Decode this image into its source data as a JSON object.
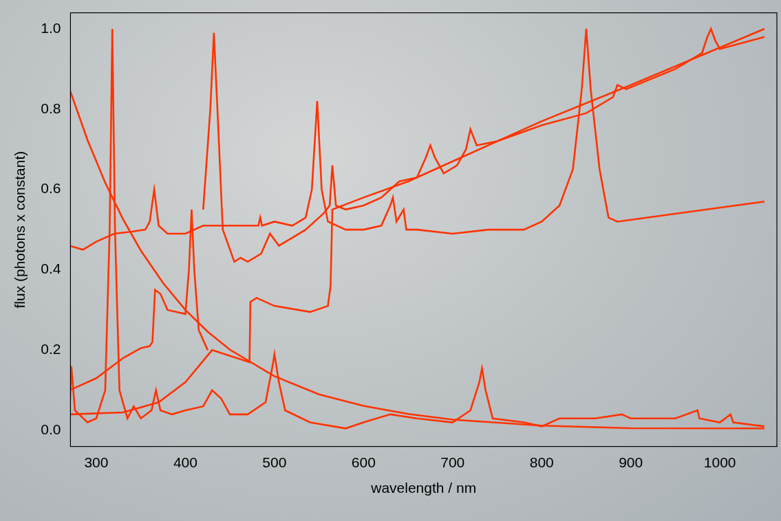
{
  "chart_data": {
    "type": "line",
    "x_label": "wavelength / nm",
    "y_label": "flux (photons x constant)",
    "xlim": [
      271,
      1064
    ],
    "ylim": [
      -0.04,
      1.04
    ],
    "xticks": [
      300,
      400,
      500,
      600,
      700,
      800,
      900,
      1000
    ],
    "yticks": [
      {
        "value": 0,
        "label": "0.0"
      },
      {
        "value": 0.2,
        "label": "0.2"
      },
      {
        "value": 0.4,
        "label": "0.4"
      },
      {
        "value": 0.6,
        "label": "0.6"
      },
      {
        "value": 0.8,
        "label": "0.8"
      },
      {
        "value": 1,
        "label": "1.0"
      }
    ],
    "grid": false,
    "series": [
      {
        "color": "#ff3300",
        "x": [
          270,
          290,
          310,
          330,
          350,
          375,
          400,
          425,
          450,
          500,
          550,
          600,
          650,
          700,
          800,
          900,
          1050
        ],
        "values": [
          0.85,
          0.724,
          0.617,
          0.526,
          0.448,
          0.367,
          0.3,
          0.246,
          0.201,
          0.135,
          0.09,
          0.061,
          0.041,
          0.027,
          0.012,
          0.0055,
          0.005
        ]
      },
      {
        "color": "#ff3300",
        "x": [
          270,
          285,
          300,
          320,
          340,
          355,
          360,
          365,
          370,
          380,
          400,
          420,
          440,
          460,
          482,
          484,
          486,
          500,
          520,
          535,
          542,
          548,
          553,
          560,
          580,
          600,
          620,
          630,
          633,
          637,
          645,
          648,
          660,
          700,
          740,
          780,
          800,
          820,
          835,
          845,
          850,
          855,
          865,
          875,
          885,
          1050
        ],
        "values": [
          0.46,
          0.45,
          0.47,
          0.49,
          0.495,
          0.5,
          0.52,
          0.6,
          0.51,
          0.49,
          0.49,
          0.51,
          0.51,
          0.51,
          0.51,
          0.53,
          0.51,
          0.52,
          0.51,
          0.53,
          0.6,
          0.82,
          0.6,
          0.52,
          0.5,
          0.5,
          0.51,
          0.56,
          0.58,
          0.52,
          0.55,
          0.5,
          0.5,
          0.49,
          0.5,
          0.5,
          0.52,
          0.56,
          0.65,
          0.85,
          1.0,
          0.85,
          0.65,
          0.53,
          0.52,
          0.57
        ]
      },
      {
        "color": "#ff3300",
        "x": [
          420,
          428,
          432,
          436,
          442,
          455,
          462,
          470,
          485,
          495,
          505,
          520,
          535,
          555,
          562,
          565,
          569,
          580,
          600,
          620,
          640,
          660,
          670,
          675,
          680,
          690,
          705,
          715,
          720,
          727,
          750,
          800,
          850,
          880,
          885,
          895,
          950,
          980,
          986,
          990,
          995,
          1000,
          1050
        ],
        "values": [
          0.55,
          0.8,
          0.99,
          0.8,
          0.5,
          0.42,
          0.43,
          0.42,
          0.44,
          0.49,
          0.46,
          0.48,
          0.5,
          0.54,
          0.56,
          0.66,
          0.56,
          0.55,
          0.56,
          0.58,
          0.62,
          0.63,
          0.68,
          0.71,
          0.68,
          0.64,
          0.66,
          0.7,
          0.75,
          0.71,
          0.72,
          0.76,
          0.79,
          0.83,
          0.86,
          0.85,
          0.9,
          0.94,
          0.98,
          1.0,
          0.97,
          0.95,
          0.98
        ]
      },
      {
        "color": "#ff3300",
        "x": [
          270,
          330,
          370,
          400,
          430,
          472,
          473,
          480,
          500,
          540,
          560,
          563,
          565,
          600,
          650,
          700,
          800,
          900,
          1050
        ],
        "values": [
          0.04,
          0.045,
          0.07,
          0.12,
          0.2,
          0.17,
          0.32,
          0.33,
          0.31,
          0.295,
          0.31,
          0.36,
          0.55,
          0.58,
          0.62,
          0.67,
          0.77,
          0.86,
          1.0
        ]
      },
      {
        "color": "#ff3300",
        "x": [
          270,
          300,
          330,
          350,
          360,
          363,
          366,
          372,
          380,
          400,
          404,
          407,
          410,
          415,
          425
        ],
        "values": [
          0.1,
          0.13,
          0.18,
          0.205,
          0.21,
          0.22,
          0.35,
          0.34,
          0.3,
          0.29,
          0.4,
          0.55,
          0.4,
          0.25,
          0.2
        ]
      },
      {
        "color": "#ff3300",
        "x": [
          270,
          272,
          276,
          290,
          300,
          310,
          315,
          318,
          321,
          326,
          335,
          342,
          350,
          362,
          367,
          372,
          385,
          400,
          420,
          430,
          440,
          450,
          470,
          490,
          497,
          500,
          505,
          512,
          540,
          580,
          600,
          630,
          660,
          700,
          720,
          730,
          733,
          737,
          745,
          780,
          800,
          820,
          860,
          890,
          900,
          950,
          975,
          977,
          1000,
          1012,
          1015,
          1050
        ],
        "values": [
          0.04,
          0.16,
          0.05,
          0.02,
          0.03,
          0.1,
          0.5,
          1.0,
          0.5,
          0.1,
          0.03,
          0.06,
          0.03,
          0.05,
          0.1,
          0.05,
          0.04,
          0.05,
          0.06,
          0.1,
          0.08,
          0.04,
          0.04,
          0.07,
          0.15,
          0.19,
          0.12,
          0.05,
          0.02,
          0.005,
          0.02,
          0.04,
          0.03,
          0.02,
          0.05,
          0.12,
          0.155,
          0.1,
          0.03,
          0.02,
          0.01,
          0.03,
          0.03,
          0.04,
          0.03,
          0.03,
          0.05,
          0.03,
          0.02,
          0.04,
          0.02,
          0.01
        ]
      }
    ]
  }
}
